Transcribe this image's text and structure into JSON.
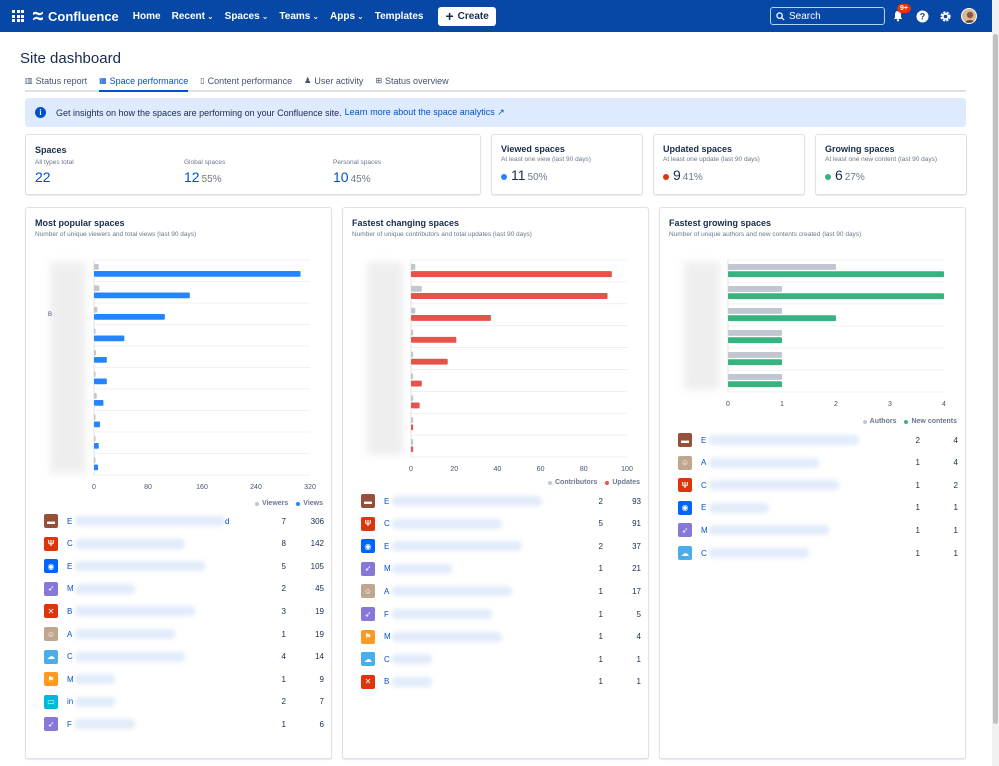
{
  "nav": {
    "brand": "Confluence",
    "items": [
      "Home",
      "Recent",
      "Spaces",
      "Teams",
      "Apps",
      "Templates"
    ],
    "dropdown_items": [
      false,
      true,
      true,
      true,
      true,
      false
    ],
    "create_label": "Create",
    "search_placeholder": "Search",
    "notifications_badge": "9+"
  },
  "page": {
    "title": "Site dashboard",
    "tabs": [
      {
        "label": "Status report",
        "icon": "bar-chart-icon"
      },
      {
        "label": "Space performance",
        "icon": "table-icon",
        "active": true
      },
      {
        "label": "Content performance",
        "icon": "page-icon"
      },
      {
        "label": "User activity",
        "icon": "person-icon"
      },
      {
        "label": "Status overview",
        "icon": "grid-icon"
      }
    ],
    "banner_text": "Get insights on how the spaces are performing on your Confluence site.",
    "banner_link": "Learn more about the space analytics"
  },
  "stats": {
    "spaces": {
      "title": "Spaces",
      "cols": [
        {
          "label": "All types total",
          "value": "22",
          "pct": ""
        },
        {
          "label": "Global spaces",
          "value": "12",
          "pct": "55%"
        },
        {
          "label": "Personal spaces",
          "value": "10",
          "pct": "45%"
        }
      ]
    },
    "viewed": {
      "title": "Viewed spaces",
      "sub": "At least one view (last 90 days)",
      "value": "11",
      "pct": "50%",
      "color": "#2684ff"
    },
    "updated": {
      "title": "Updated spaces",
      "sub": "At least one update (last 90 days)",
      "value": "9",
      "pct": "41%",
      "color": "#de350b"
    },
    "growing": {
      "title": "Growing spaces",
      "sub": "At least one new content (last 90 days)",
      "value": "6",
      "pct": "27%",
      "color": "#36b37e"
    }
  },
  "panels": {
    "popular": {
      "title": "Most popular spaces",
      "sub": "Number of unique viewers and total views (last 90 days)",
      "legend": [
        "Viewers",
        "Views"
      ],
      "rows": [
        {
          "initial": "E",
          "name_suffix": "d",
          "icon": "chest-icon",
          "color": "#974f3a",
          "a": "7",
          "b": "306"
        },
        {
          "initial": "C",
          "icon": "tool-icon",
          "color": "#de350b",
          "a": "8",
          "b": "142"
        },
        {
          "initial": "E",
          "icon": "target-icon",
          "color": "#0065ff",
          "a": "5",
          "b": "105"
        },
        {
          "initial": "M",
          "icon": "rocket-icon",
          "color": "#8777d9",
          "a": "2",
          "b": "45"
        },
        {
          "initial": "B",
          "icon": "cross-icon",
          "color": "#de350b",
          "a": "3",
          "b": "19"
        },
        {
          "initial": "A",
          "icon": "avatar-icon",
          "color": "#c1a68f",
          "a": "1",
          "b": "19"
        },
        {
          "initial": "C",
          "icon": "cloud-icon",
          "color": "#4bade8",
          "a": "4",
          "b": "14"
        },
        {
          "initial": "M",
          "icon": "flag-icon",
          "color": "#ff991f",
          "a": "1",
          "b": "9"
        },
        {
          "initial": "in",
          "icon": "chat-icon",
          "color": "#00b8d9",
          "a": "2",
          "b": "7"
        },
        {
          "initial": "F",
          "icon": "rocket-icon",
          "color": "#8777d9",
          "a": "1",
          "b": "6"
        }
      ]
    },
    "changing": {
      "title": "Fastest changing spaces",
      "sub": "Number of unique contributors and total updates (last 90 days)",
      "legend": [
        "Contributors",
        "Updates"
      ],
      "rows": [
        {
          "initial": "E",
          "icon": "chest-icon",
          "color": "#974f3a",
          "a": "2",
          "b": "93"
        },
        {
          "initial": "C",
          "icon": "tool-icon",
          "color": "#de350b",
          "a": "5",
          "b": "91"
        },
        {
          "initial": "E",
          "icon": "target-icon",
          "color": "#0065ff",
          "a": "2",
          "b": "37"
        },
        {
          "initial": "M",
          "icon": "rocket-icon",
          "color": "#8777d9",
          "a": "1",
          "b": "21"
        },
        {
          "initial": "A",
          "icon": "avatar-icon",
          "color": "#c1a68f",
          "a": "1",
          "b": "17"
        },
        {
          "initial": "F",
          "icon": "rocket-icon",
          "color": "#8777d9",
          "a": "1",
          "b": "5"
        },
        {
          "initial": "M",
          "icon": "flag-icon",
          "color": "#ff991f",
          "a": "1",
          "b": "4"
        },
        {
          "initial": "C",
          "icon": "cloud-icon",
          "color": "#4bade8",
          "a": "1",
          "b": "1"
        },
        {
          "initial": "B",
          "icon": "cross-icon",
          "color": "#de350b",
          "a": "1",
          "b": "1"
        }
      ]
    },
    "growing": {
      "title": "Fastest growing spaces",
      "sub": "Number of unique authors and new contents created (last 90 days)",
      "legend": [
        "Authors",
        "New contents"
      ],
      "rows": [
        {
          "initial": "E",
          "icon": "chest-icon",
          "color": "#974f3a",
          "a": "2",
          "b": "4"
        },
        {
          "initial": "A",
          "icon": "avatar-icon",
          "color": "#c1a68f",
          "a": "1",
          "b": "4"
        },
        {
          "initial": "C",
          "icon": "tool-icon",
          "color": "#de350b",
          "a": "1",
          "b": "2"
        },
        {
          "initial": "E",
          "icon": "target-icon",
          "color": "#0065ff",
          "a": "1",
          "b": "1"
        },
        {
          "initial": "M",
          "icon": "rocket-icon",
          "color": "#8777d9",
          "a": "1",
          "b": "1"
        },
        {
          "initial": "C",
          "icon": "cloud-icon",
          "color": "#4bade8",
          "a": "1",
          "b": "1"
        }
      ]
    }
  },
  "chart_data": [
    {
      "type": "bar",
      "orientation": "horizontal",
      "title": "Most popular spaces",
      "subtitle": "Number of unique viewers and total views (last 90 days)",
      "categories": [
        "",
        "",
        "",
        "",
        "",
        "",
        "",
        "",
        "",
        ""
      ],
      "ytick_labels_visible": [
        "",
        "",
        "B",
        "",
        "",
        "",
        "",
        "",
        "",
        ""
      ],
      "series": [
        {
          "name": "Viewers",
          "color": "#c1c7d0",
          "values": [
            7,
            8,
            5,
            2,
            3,
            1,
            4,
            1,
            2,
            1
          ]
        },
        {
          "name": "Views",
          "color": "#2684ff",
          "values": [
            306,
            142,
            105,
            45,
            19,
            19,
            14,
            9,
            7,
            6
          ]
        }
      ],
      "xlim": [
        0,
        320
      ],
      "xticks": [
        0,
        80,
        160,
        240,
        320
      ],
      "grid": true,
      "legend": "bottom-right"
    },
    {
      "type": "bar",
      "orientation": "horizontal",
      "title": "Fastest changing spaces",
      "subtitle": "Number of unique contributors and total updates (last 90 days)",
      "categories": [
        "",
        "",
        "",
        "",
        "",
        "",
        "",
        "",
        ""
      ],
      "series": [
        {
          "name": "Contributors",
          "color": "#c1c7d0",
          "values": [
            2,
            5,
            2,
            1,
            1,
            1,
            1,
            1,
            1
          ]
        },
        {
          "name": "Updates",
          "color": "#e5534b",
          "values": [
            93,
            91,
            37,
            21,
            17,
            5,
            4,
            1,
            1
          ]
        }
      ],
      "xlim": [
        0,
        100
      ],
      "xticks": [
        0,
        20,
        40,
        60,
        80,
        100
      ],
      "grid": true,
      "legend": "bottom-right"
    },
    {
      "type": "bar",
      "orientation": "horizontal",
      "title": "Fastest growing spaces",
      "subtitle": "Number of unique authors and new contents created (last 90 days)",
      "categories": [
        "",
        "",
        "",
        "",
        "",
        ""
      ],
      "series": [
        {
          "name": "Authors",
          "color": "#c1c7d0",
          "values": [
            2,
            1,
            1,
            1,
            1,
            1
          ]
        },
        {
          "name": "New contents",
          "color": "#36b37e",
          "values": [
            4,
            4,
            2,
            1,
            1,
            1
          ]
        }
      ],
      "xlim": [
        0,
        4
      ],
      "xticks": [
        0,
        1,
        2,
        3,
        4
      ],
      "grid": true,
      "legend": "bottom-right"
    }
  ]
}
